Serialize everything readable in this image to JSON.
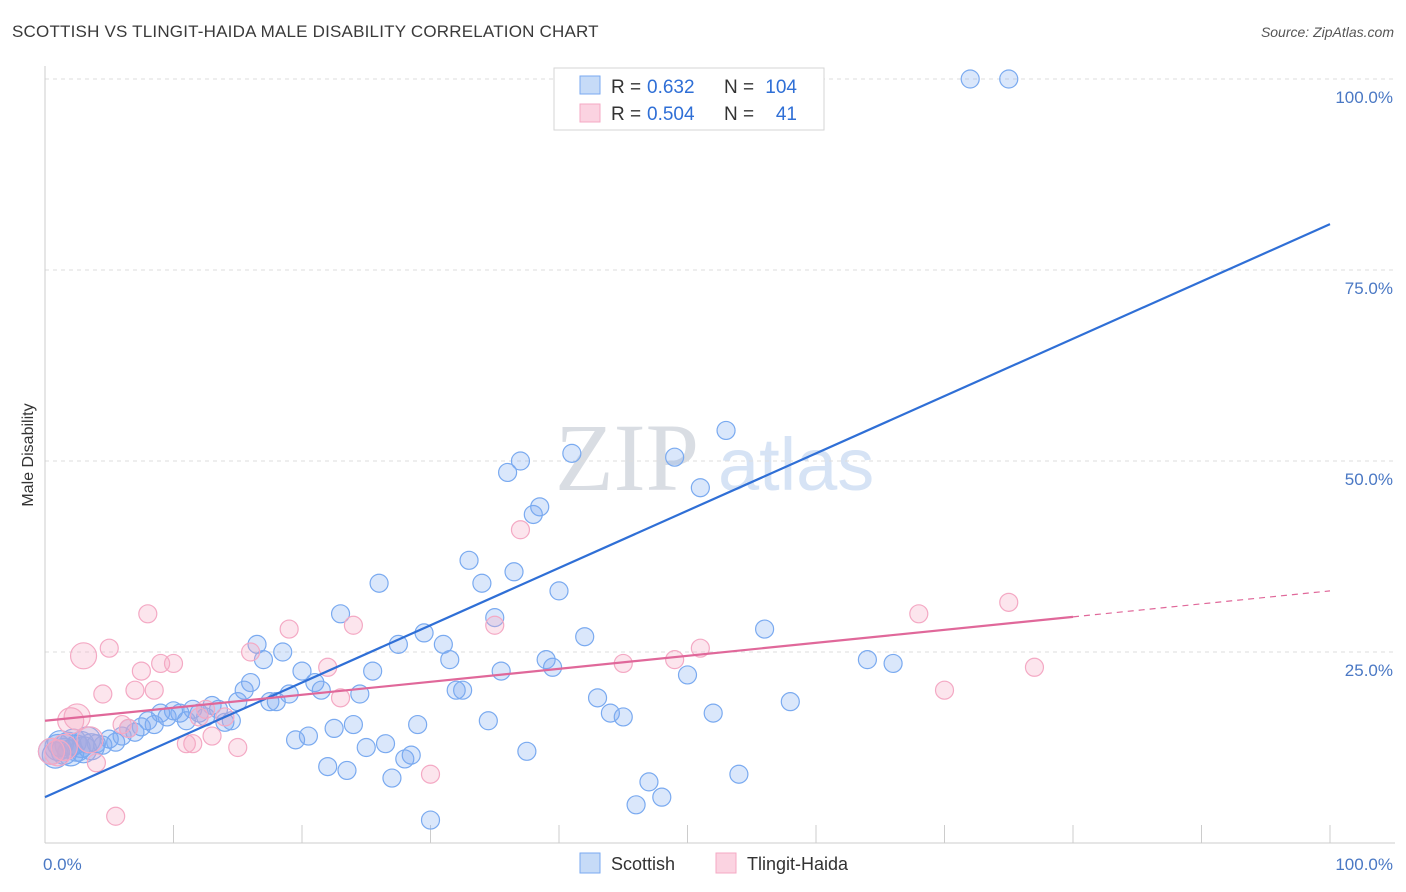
{
  "header": {
    "title": "SCOTTISH VS TLINGIT-HAIDA MALE DISABILITY CORRELATION CHART",
    "source": "Source: ZipAtlas.com"
  },
  "watermark": {
    "zip": "ZIP",
    "atlas": "atlas"
  },
  "stats": {
    "rows": [
      {
        "r_label": "R =",
        "r_value": "0.632",
        "n_label": "N =",
        "n_value": "104",
        "color": "#7aaaf0"
      },
      {
        "r_label": "R =",
        "r_value": "0.504",
        "n_label": "N =",
        "n_value": "41",
        "color": "#f4a9c4"
      }
    ]
  },
  "chart_data": {
    "type": "scatter",
    "title": "SCOTTISH VS TLINGIT-HAIDA MALE DISABILITY CORRELATION CHART",
    "xlabel": "",
    "ylabel": "Male Disability",
    "xlim": [
      0,
      100
    ],
    "ylim": [
      0,
      100
    ],
    "x_tick_labels": [
      "0.0%",
      "100.0%"
    ],
    "y_ticks": [
      25,
      50,
      75,
      100
    ],
    "y_tick_labels": [
      "25.0%",
      "50.0%",
      "75.0%",
      "100.0%"
    ],
    "grid": true,
    "legend_position": "bottom-center",
    "series": [
      {
        "name": "Scottish",
        "color": "#7aaaf0",
        "trend": {
          "x": [
            0,
            100
          ],
          "y": [
            6,
            81
          ],
          "solid_to": 100
        },
        "points": [
          [
            0.5,
            12
          ],
          [
            0.8,
            11.5
          ],
          [
            1,
            12.5
          ],
          [
            1.2,
            13
          ],
          [
            1.5,
            12
          ],
          [
            1.8,
            12.8
          ],
          [
            2,
            11.8
          ],
          [
            2.2,
            13.2
          ],
          [
            2.5,
            12.4
          ],
          [
            2.8,
            12.9
          ],
          [
            3,
            12.2
          ],
          [
            3.3,
            13.5
          ],
          [
            3.6,
            12.6
          ],
          [
            4,
            13
          ],
          [
            4.5,
            12.8
          ],
          [
            5,
            13.6
          ],
          [
            5.5,
            13.2
          ],
          [
            6,
            14
          ],
          [
            6.5,
            15
          ],
          [
            7,
            14.5
          ],
          [
            7.5,
            15.2
          ],
          [
            8,
            16
          ],
          [
            8.5,
            15.5
          ],
          [
            9,
            17
          ],
          [
            9.5,
            16.5
          ],
          [
            10,
            17.3
          ],
          [
            10.5,
            17
          ],
          [
            11,
            16
          ],
          [
            11.5,
            17.5
          ],
          [
            12,
            17
          ],
          [
            12.5,
            16.5
          ],
          [
            13,
            18
          ],
          [
            13.5,
            17.5
          ],
          [
            14,
            15.8
          ],
          [
            14.5,
            16
          ],
          [
            15,
            18.5
          ],
          [
            15.5,
            20
          ],
          [
            16,
            21
          ],
          [
            16.5,
            26
          ],
          [
            17,
            24
          ],
          [
            17.5,
            18.5
          ],
          [
            18,
            18.5
          ],
          [
            18.5,
            25
          ],
          [
            19,
            19.5
          ],
          [
            19.5,
            13.5
          ],
          [
            20,
            22.5
          ],
          [
            20.5,
            14
          ],
          [
            21,
            21
          ],
          [
            21.5,
            20
          ],
          [
            22,
            10
          ],
          [
            22.5,
            15
          ],
          [
            23,
            30
          ],
          [
            23.5,
            9.5
          ],
          [
            24,
            15.5
          ],
          [
            24.5,
            19.5
          ],
          [
            25,
            12.5
          ],
          [
            25.5,
            22.5
          ],
          [
            26,
            34
          ],
          [
            26.5,
            13
          ],
          [
            27,
            8.5
          ],
          [
            27.5,
            26
          ],
          [
            28,
            11
          ],
          [
            28.5,
            11.5
          ],
          [
            29,
            15.5
          ],
          [
            29.5,
            27.5
          ],
          [
            30,
            3
          ],
          [
            31,
            26
          ],
          [
            31.5,
            24
          ],
          [
            32,
            20
          ],
          [
            32.5,
            20
          ],
          [
            33,
            37
          ],
          [
            34,
            34
          ],
          [
            34.5,
            16
          ],
          [
            35,
            29.5
          ],
          [
            35.5,
            22.5
          ],
          [
            36,
            48.5
          ],
          [
            36.5,
            35.5
          ],
          [
            37,
            50
          ],
          [
            37.5,
            12
          ],
          [
            38,
            43
          ],
          [
            38.5,
            44
          ],
          [
            39,
            24
          ],
          [
            39.5,
            23
          ],
          [
            40,
            33
          ],
          [
            41,
            51
          ],
          [
            42,
            27
          ],
          [
            43,
            19
          ],
          [
            44,
            17
          ],
          [
            45,
            16.5
          ],
          [
            46,
            5
          ],
          [
            47,
            8
          ],
          [
            48,
            6
          ],
          [
            49,
            50.5
          ],
          [
            50,
            22
          ],
          [
            51,
            46.5
          ],
          [
            52,
            17
          ],
          [
            53,
            54
          ],
          [
            54,
            9
          ],
          [
            56,
            28
          ],
          [
            58,
            18.5
          ],
          [
            64,
            24
          ],
          [
            66,
            23.5
          ],
          [
            72,
            100
          ],
          [
            75,
            100
          ]
        ]
      },
      {
        "name": "Tlingit-Haida",
        "color": "#f4a9c4",
        "trend": {
          "x": [
            0,
            100
          ],
          "y": [
            16,
            33
          ],
          "solid_to": 80
        },
        "points": [
          [
            0.5,
            12
          ],
          [
            1,
            11.8
          ],
          [
            1.5,
            12.5
          ],
          [
            2,
            16
          ],
          [
            2.5,
            16.5
          ],
          [
            3,
            24.5
          ],
          [
            3.5,
            13.5
          ],
          [
            4,
            10.5
          ],
          [
            4.5,
            19.5
          ],
          [
            5,
            25.5
          ],
          [
            5.5,
            3.5
          ],
          [
            6,
            15.5
          ],
          [
            6.5,
            15
          ],
          [
            7,
            20
          ],
          [
            7.5,
            22.5
          ],
          [
            8,
            30
          ],
          [
            8.5,
            20
          ],
          [
            9,
            23.5
          ],
          [
            10,
            23.5
          ],
          [
            11,
            13
          ],
          [
            11.5,
            13
          ],
          [
            12,
            16.5
          ],
          [
            12.5,
            17.5
          ],
          [
            13,
            14
          ],
          [
            14,
            16.5
          ],
          [
            15,
            12.5
          ],
          [
            16,
            25
          ],
          [
            19,
            28
          ],
          [
            22,
            23
          ],
          [
            23,
            19
          ],
          [
            24,
            28.5
          ],
          [
            30,
            9
          ],
          [
            35,
            28.5
          ],
          [
            37,
            41
          ],
          [
            45,
            23.5
          ],
          [
            49,
            24
          ],
          [
            51,
            25.5
          ],
          [
            68,
            30
          ],
          [
            70,
            20
          ],
          [
            75,
            31.5
          ],
          [
            77,
            23
          ]
        ]
      }
    ]
  },
  "legend": {
    "items": [
      {
        "label": "Scottish",
        "color": "#7aaaf0"
      },
      {
        "label": "Tlingit-Haida",
        "color": "#f4a9c4"
      }
    ]
  }
}
